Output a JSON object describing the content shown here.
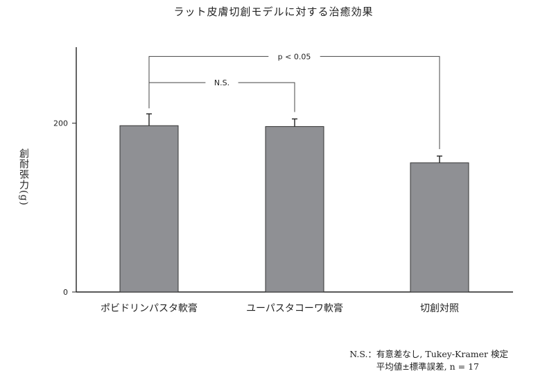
{
  "chart_data": {
    "type": "bar",
    "title": "ラット皮膚切創モデルに対する治癒効果",
    "ylabel": "創耐張力(g)",
    "xlabel": "",
    "ylim": [
      0,
      290
    ],
    "yticks": [
      0,
      200
    ],
    "categories": [
      "ポビドリンパスタ軟膏",
      "ユーパスタコーワ軟膏",
      "切創対照"
    ],
    "values": [
      197,
      196,
      153
    ],
    "errors": [
      14,
      9,
      8
    ],
    "bar_color": "#8f9094",
    "grid": false,
    "comparisons": [
      {
        "from": 0,
        "to": 1,
        "label": "N.S.",
        "y": 248
      },
      {
        "from": 0,
        "to": 2,
        "label": "p < 0.05",
        "y": 279
      }
    ]
  },
  "notes": {
    "line1": "N.S.：有意差なし, Tukey-Kramer 検定",
    "line2": "平均値±標準誤差, n = 17"
  }
}
